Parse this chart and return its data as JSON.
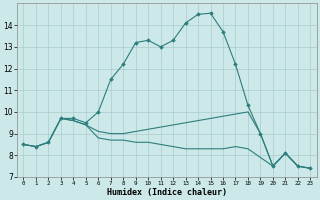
{
  "xlabel": "Humidex (Indice chaleur)",
  "x_values": [
    0,
    1,
    2,
    3,
    4,
    5,
    6,
    7,
    8,
    9,
    10,
    11,
    12,
    13,
    14,
    15,
    16,
    17,
    18,
    19,
    20,
    21,
    22,
    23
  ],
  "line1_y": [
    8.5,
    8.4,
    8.6,
    9.7,
    9.7,
    9.5,
    10.0,
    11.5,
    12.2,
    13.2,
    13.3,
    13.0,
    13.3,
    14.1,
    14.5,
    14.55,
    13.7,
    12.2,
    10.3,
    9.0,
    7.5,
    8.1,
    7.5,
    7.4
  ],
  "line2_y": [
    8.5,
    8.4,
    8.6,
    9.7,
    9.6,
    9.4,
    9.1,
    9.0,
    9.0,
    9.1,
    9.2,
    9.3,
    9.4,
    9.5,
    9.6,
    9.7,
    9.8,
    9.9,
    10.0,
    9.0,
    7.5,
    8.1,
    7.5,
    7.4
  ],
  "line3_y": [
    8.5,
    8.4,
    8.6,
    9.7,
    9.6,
    9.4,
    8.8,
    8.7,
    8.7,
    8.6,
    8.6,
    8.5,
    8.4,
    8.3,
    8.3,
    8.3,
    8.3,
    8.4,
    8.3,
    7.9,
    7.5,
    8.1,
    7.5,
    7.4
  ],
  "line_color": "#2d7d7d",
  "bg_color": "#cce8e8",
  "grid_color": "#aacccc",
  "ylim": [
    7,
    15
  ],
  "xlim": [
    -0.5,
    23.5
  ],
  "yticks": [
    7,
    8,
    9,
    10,
    11,
    12,
    13,
    14
  ],
  "xticks": [
    0,
    1,
    2,
    3,
    4,
    5,
    6,
    7,
    8,
    9,
    10,
    11,
    12,
    13,
    14,
    15,
    16,
    17,
    18,
    19,
    20,
    21,
    22,
    23
  ],
  "xtick_labels": [
    "0",
    "1",
    "2",
    "3",
    "4",
    "5",
    "6",
    "7",
    "8",
    "9",
    "10",
    "11",
    "12",
    "13",
    "14",
    "15",
    "16",
    "17",
    "18",
    "19",
    "20",
    "21",
    "22",
    "23"
  ]
}
